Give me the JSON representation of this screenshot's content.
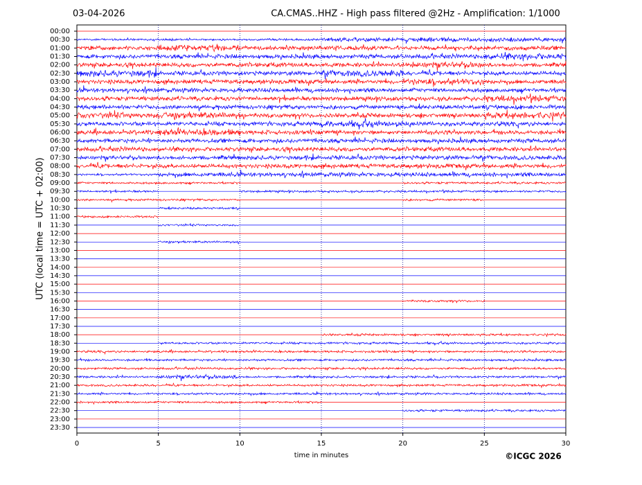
{
  "chart_data": {
    "type": "helicorder",
    "title": "CA.CMAS..HHZ - High pass filtered @2Hz - Amplification: 1/1000",
    "date": "03-04-2026",
    "y_label": "UTC (local time = UTC + 02:00)",
    "x_label": "time in minutes",
    "credit": "©ICGC 2026",
    "xlim": [
      0,
      30
    ],
    "xticks": [
      0,
      5,
      10,
      15,
      20,
      25,
      30
    ],
    "grid": true,
    "colors": [
      "#ff0000",
      "#0000ff"
    ],
    "categories": [
      "00:00",
      "00:30",
      "01:00",
      "01:30",
      "02:00",
      "02:30",
      "03:00",
      "03:30",
      "04:00",
      "04:30",
      "05:00",
      "05:30",
      "06:00",
      "06:30",
      "07:00",
      "07:30",
      "08:00",
      "08:30",
      "09:00",
      "09:30",
      "10:00",
      "10:30",
      "11:00",
      "11:30",
      "12:00",
      "12:30",
      "13:00",
      "13:30",
      "14:00",
      "14:30",
      "15:00",
      "15:30",
      "16:00",
      "16:30",
      "17:00",
      "17:30",
      "18:00",
      "18:30",
      "19:00",
      "19:30",
      "20:00",
      "20:30",
      "21:00",
      "21:30",
      "22:00",
      "22:30",
      "23:00",
      "23:30"
    ],
    "amplitude": [
      [
        0,
        0,
        0,
        0,
        0,
        0
      ],
      [
        1,
        1,
        1,
        2,
        2,
        2
      ],
      [
        2,
        3,
        2,
        2,
        2,
        2
      ],
      [
        2,
        2,
        2,
        2,
        2,
        3
      ],
      [
        2,
        2,
        2,
        2,
        3,
        2
      ],
      [
        3,
        2,
        2,
        3,
        2,
        2
      ],
      [
        2,
        2,
        2,
        2,
        3,
        2
      ],
      [
        2,
        2,
        2,
        2,
        2,
        2
      ],
      [
        2,
        2,
        2,
        2,
        2,
        3
      ],
      [
        2,
        2,
        2,
        2,
        2,
        2
      ],
      [
        3,
        3,
        2,
        2,
        2,
        3
      ],
      [
        2,
        2,
        2,
        3,
        2,
        2
      ],
      [
        2,
        3,
        2,
        2,
        2,
        2
      ],
      [
        2,
        2,
        2,
        2,
        2,
        2
      ],
      [
        2,
        2,
        2,
        2,
        2,
        2
      ],
      [
        2,
        2,
        2,
        2,
        2,
        2
      ],
      [
        2,
        2,
        2,
        2,
        2,
        2
      ],
      [
        1,
        2,
        2,
        2,
        2,
        2
      ],
      [
        1,
        1,
        0,
        0,
        1,
        1
      ],
      [
        1,
        0,
        1,
        1,
        1,
        1
      ],
      [
        1,
        1,
        0,
        0,
        1,
        0
      ],
      [
        0,
        1,
        0,
        0,
        0,
        0
      ],
      [
        1,
        0,
        0,
        0,
        0,
        0
      ],
      [
        0,
        1,
        0,
        0,
        0,
        0
      ],
      [
        0,
        0,
        0,
        0,
        0,
        0
      ],
      [
        0,
        1,
        0,
        0,
        0,
        0
      ],
      [
        0,
        0,
        0,
        0,
        0,
        0
      ],
      [
        0,
        0,
        0,
        0,
        0,
        0
      ],
      [
        0,
        0,
        0,
        0,
        0,
        0
      ],
      [
        0,
        0,
        0,
        0,
        0,
        0
      ],
      [
        0,
        0,
        0,
        0,
        0,
        0
      ],
      [
        0,
        0,
        0,
        0,
        0,
        0
      ],
      [
        0,
        0,
        0,
        0,
        1,
        0
      ],
      [
        0,
        0,
        0,
        0,
        0,
        0
      ],
      [
        0,
        0,
        0,
        0,
        0,
        0
      ],
      [
        0,
        0,
        0,
        0,
        0,
        0
      ],
      [
        0,
        0,
        0,
        1,
        1,
        1
      ],
      [
        0,
        1,
        1,
        1,
        1,
        1
      ],
      [
        1,
        1,
        1,
        1,
        1,
        1
      ],
      [
        1,
        1,
        1,
        1,
        1,
        1
      ],
      [
        1,
        1,
        1,
        1,
        1,
        1
      ],
      [
        1,
        2,
        1,
        1,
        1,
        1
      ],
      [
        1,
        1,
        1,
        1,
        1,
        1
      ],
      [
        1,
        1,
        1,
        1,
        1,
        1
      ],
      [
        1,
        1,
        1,
        0,
        0,
        0
      ],
      [
        0,
        0,
        0,
        0,
        1,
        1
      ],
      [
        0,
        0,
        0,
        0,
        0,
        0
      ],
      [
        0,
        0,
        0,
        0,
        0,
        0
      ]
    ]
  }
}
